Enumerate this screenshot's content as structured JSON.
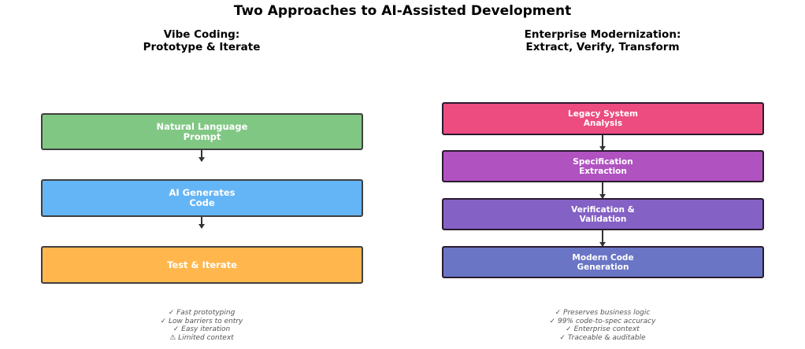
{
  "title": "Two Approaches to AI-Assisted Development",
  "left": {
    "heading": [
      "Vibe Coding:",
      "Prototype & Iterate"
    ],
    "steps": [
      {
        "lines": [
          "Natural Language",
          "Prompt"
        ],
        "color": "#81c784"
      },
      {
        "lines": [
          "AI Generates",
          "Code"
        ],
        "color": "#64b5f6"
      },
      {
        "lines": [
          "Test & Iterate"
        ],
        "color": "#ffb74d"
      }
    ],
    "notes": [
      "✓ Fast prototyping",
      "✓ Low barriers to entry",
      "✓ Easy iteration",
      "⚠ Limited context"
    ]
  },
  "right": {
    "heading": [
      "Enterprise Modernization:",
      "Extract, Verify, Transform"
    ],
    "steps": [
      {
        "lines": [
          "Legacy System",
          "Analysis"
        ],
        "color": "#ec4c80"
      },
      {
        "lines": [
          "Specification",
          "Extraction"
        ],
        "color": "#b052c0"
      },
      {
        "lines": [
          "Verification &",
          "Validation"
        ],
        "color": "#8461c4"
      },
      {
        "lines": [
          "Modern Code",
          "Generation"
        ],
        "color": "#6a75c5"
      }
    ],
    "notes": [
      "✓ Preserves business logic",
      "✓ 99% code-to-spec accuracy",
      "✓ Enterprise context",
      "✓ Traceable & auditable"
    ]
  }
}
